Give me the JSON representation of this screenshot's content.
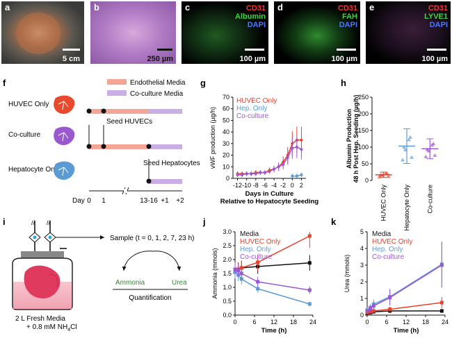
{
  "panels": {
    "a": {
      "letter": "a",
      "scale": "5 cm"
    },
    "b": {
      "letter": "b",
      "scale": "250 µm"
    },
    "c": {
      "letter": "c",
      "scale": "100 µm",
      "stains": [
        "CD31",
        "Albumin",
        "DAPI"
      ],
      "colors": [
        "#ff3030",
        "#3cd83c",
        "#4a78ff"
      ]
    },
    "d": {
      "letter": "d",
      "scale": "100 µm",
      "stains": [
        "CD31",
        "FAH",
        "DAPI"
      ],
      "colors": [
        "#ff3030",
        "#3cd83c",
        "#4a78ff"
      ]
    },
    "e": {
      "letter": "e",
      "scale": "100 µm",
      "stains": [
        "CD31",
        "LYVE1",
        "DAPI"
      ],
      "colors": [
        "#ff3030",
        "#3cd83c",
        "#4a78ff"
      ]
    }
  },
  "timeline": {
    "letter": "f",
    "legend": [
      {
        "label": "Endothelial Media",
        "color": "#f4a595"
      },
      {
        "label": "Co-culture Media",
        "color": "#c9aee6"
      }
    ],
    "rows": [
      "HUVEC Only",
      "Co-culture",
      "Hepatocyte Only"
    ],
    "annotations": [
      "Seed HUVECs",
      "Seed Hepatocytes"
    ],
    "ticks": [
      "Day",
      "0",
      "1",
      "13-16",
      "+1",
      "+2"
    ]
  },
  "diagram": {
    "letter": "i",
    "sample": "Sample (t = 0, 1, 2, 7, 23 h)",
    "outputs": [
      "Ammonia",
      "Urea"
    ],
    "quantification": "Quantification",
    "media": "2 L Fresh Media",
    "nh4": "+ 0.8 mM NH",
    "nh4_sub": "4",
    "nh4_tail": "Cl"
  },
  "chart_data": [
    {
      "panel": "g",
      "type": "scatter",
      "ylabel": "vWF production (µg/h)",
      "xlabel": [
        "Days in Culture",
        "Relative to Hepatocyte Seeding"
      ],
      "xticks": [
        -12,
        -10,
        -8,
        -6,
        -4,
        -2,
        0,
        2
      ],
      "yticks": [
        0,
        10,
        20,
        30,
        40,
        50,
        60,
        70
      ],
      "xlim": [
        -13,
        3
      ],
      "ylim": [
        0,
        70
      ],
      "legend": [
        "HUVEC Only",
        "Hep. Only",
        "Co-culture"
      ],
      "series": [
        {
          "name": "HUVEC Only",
          "color": "#e8402a",
          "x": [
            -12,
            -11,
            -10,
            -9,
            -8,
            -7,
            -6,
            -5,
            -4,
            -3,
            -2,
            -1,
            0,
            1,
            2
          ],
          "y": [
            4,
            4,
            4,
            4,
            5,
            5,
            5,
            7,
            8,
            10,
            14,
            20,
            30,
            33,
            33
          ]
        },
        {
          "name": "Co-culture",
          "color": "#9b59d0",
          "x": [
            -12,
            -11,
            -10,
            -9,
            -8,
            -7,
            -6,
            -5,
            -4,
            -3,
            -2,
            -1,
            0,
            1,
            2
          ],
          "y": [
            3,
            3,
            4,
            4,
            4,
            5,
            5,
            6,
            8,
            10,
            12,
            18,
            26,
            27,
            25
          ]
        },
        {
          "name": "Hep. Only",
          "color": "#5b9bd5",
          "x": [
            0,
            1,
            2
          ],
          "y": [
            2,
            2,
            3
          ]
        }
      ]
    },
    {
      "panel": "h",
      "type": "scatter",
      "ylabel": [
        "Albumin Production",
        "48 h Post Hep. Seeding (µg/h)"
      ],
      "yticks": [
        0,
        50,
        100,
        150,
        200,
        250
      ],
      "ylim": [
        0,
        250
      ],
      "categories": [
        "HUVEC Only",
        "Hepatocyte Only",
        "Co-culture"
      ],
      "colors": [
        "#e8402a",
        "#5b9bd5",
        "#9b59d0"
      ],
      "means": [
        17,
        103,
        95
      ],
      "sd": [
        8,
        52,
        30
      ]
    },
    {
      "panel": "j",
      "type": "line",
      "ylabel": "Ammonia (mmols)",
      "xlabel": "Time (h)",
      "xticks": [
        0,
        6,
        12,
        18,
        24
      ],
      "yticks": [
        0.0,
        0.5,
        1.0,
        1.5,
        2.0,
        2.5,
        3.0
      ],
      "xlim": [
        0,
        24
      ],
      "ylim": [
        0,
        3.0
      ],
      "legend": [
        "Media",
        "HUVEC Only",
        "Hep. Only",
        "Co-culture"
      ],
      "series": [
        {
          "name": "Media",
          "color": "#111111",
          "x": [
            0,
            1,
            2,
            7,
            23
          ],
          "y": [
            1.65,
            1.65,
            1.7,
            1.75,
            1.88
          ]
        },
        {
          "name": "HUVEC Only",
          "color": "#e8402a",
          "x": [
            0,
            1,
            2,
            7,
            23
          ],
          "y": [
            1.6,
            1.65,
            1.7,
            1.9,
            2.85
          ]
        },
        {
          "name": "Hep. Only",
          "color": "#5b9bd5",
          "x": [
            0,
            1,
            2,
            7,
            23
          ],
          "y": [
            1.55,
            1.45,
            1.3,
            0.95,
            0.4
          ]
        },
        {
          "name": "Co-culture",
          "color": "#9b59d0",
          "x": [
            0,
            1,
            2,
            7,
            23
          ],
          "y": [
            1.65,
            1.6,
            1.5,
            1.2,
            0.9
          ]
        }
      ]
    },
    {
      "panel": "k",
      "type": "line",
      "ylabel": "Urea (mmols)",
      "xlabel": "Time (h)",
      "xticks": [
        0,
        6,
        12,
        18,
        24
      ],
      "yticks": [
        0.0,
        1.0,
        2.0,
        3.0,
        4.0,
        5.0
      ],
      "xlim": [
        0,
        24
      ],
      "ylim": [
        0,
        5.0
      ],
      "legend": [
        "Media",
        "HUVEC Only",
        "Hep. Only",
        "Co-culture"
      ],
      "series": [
        {
          "name": "Media",
          "color": "#111111",
          "x": [
            0,
            1,
            2,
            7,
            23
          ],
          "y": [
            0.1,
            0.15,
            0.2,
            0.25,
            0.25
          ]
        },
        {
          "name": "HUVEC Only",
          "color": "#e8402a",
          "x": [
            0,
            1,
            2,
            7,
            23
          ],
          "y": [
            0.15,
            0.2,
            0.25,
            0.35,
            0.75
          ]
        },
        {
          "name": "Hep. Only",
          "color": "#5b9bd5",
          "x": [
            0,
            1,
            2,
            7,
            23
          ],
          "y": [
            0.3,
            0.45,
            0.65,
            1.1,
            3.05
          ]
        },
        {
          "name": "Co-culture",
          "color": "#9b59d0",
          "x": [
            0,
            1,
            2,
            7,
            23
          ],
          "y": [
            0.25,
            0.4,
            0.55,
            1.05,
            3.0
          ]
        }
      ]
    }
  ]
}
